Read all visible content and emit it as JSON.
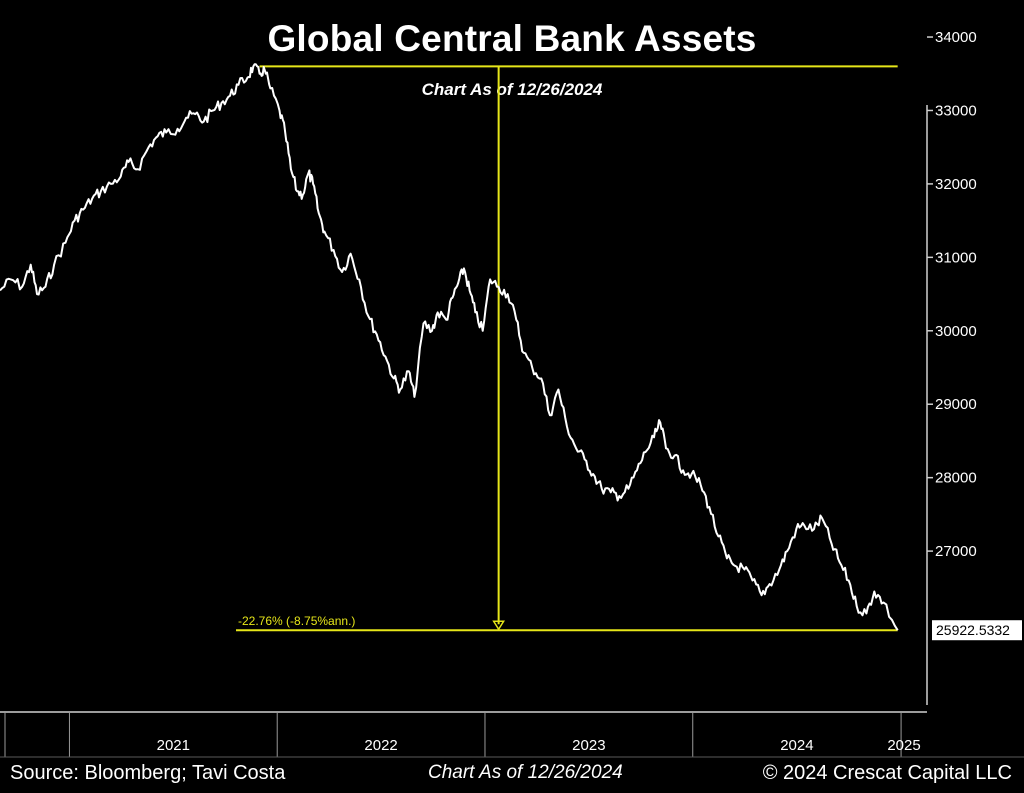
{
  "chart_data": {
    "type": "line",
    "title": "Global Central Bank Assets",
    "subtitle": "Chart As of 12/26/2024",
    "xlabel": "",
    "ylabel": "",
    "x_range": [
      "2020-09-01",
      "2025-06-15"
    ],
    "ylim": [
      24700,
      34300
    ],
    "y_ticks": [
      27000,
      28000,
      29000,
      30000,
      31000,
      32000,
      33000,
      34000
    ],
    "y_tick_labels": [
      "27000",
      "28000",
      "29000",
      "30000",
      "31000",
      "32000",
      "33000",
      "34000"
    ],
    "x_tick_labels": [
      "2021",
      "2022",
      "2023",
      "2024",
      "2025"
    ],
    "x_tick_dates": [
      "2021-01-01",
      "2022-01-01",
      "2023-01-01",
      "2024-01-01",
      "2025-01-01"
    ],
    "grid": false,
    "series": [
      {
        "color": "#ffffff",
        "points": [
          [
            "2020-09-01",
            30550
          ],
          [
            "2020-09-20",
            30700
          ],
          [
            "2020-10-10",
            30600
          ],
          [
            "2020-10-25",
            30900
          ],
          [
            "2020-11-05",
            30500
          ],
          [
            "2020-11-20",
            30600
          ],
          [
            "2020-12-05",
            30900
          ],
          [
            "2020-12-25",
            31200
          ],
          [
            "2021-01-10",
            31500
          ],
          [
            "2021-01-25",
            31650
          ],
          [
            "2021-02-10",
            31800
          ],
          [
            "2021-02-25",
            31900
          ],
          [
            "2021-03-15",
            32000
          ],
          [
            "2021-04-01",
            32100
          ],
          [
            "2021-04-15",
            32300
          ],
          [
            "2021-05-01",
            32200
          ],
          [
            "2021-05-20",
            32500
          ],
          [
            "2021-06-05",
            32650
          ],
          [
            "2021-06-20",
            32700
          ],
          [
            "2021-07-10",
            32750
          ],
          [
            "2021-07-25",
            32900
          ],
          [
            "2021-08-10",
            32950
          ],
          [
            "2021-08-25",
            32850
          ],
          [
            "2021-09-10",
            33000
          ],
          [
            "2021-09-25",
            33100
          ],
          [
            "2021-10-10",
            33200
          ],
          [
            "2021-10-25",
            33350
          ],
          [
            "2021-11-10",
            33450
          ],
          [
            "2021-11-20",
            33600
          ],
          [
            "2021-12-01",
            33500
          ],
          [
            "2021-12-10",
            33550
          ],
          [
            "2021-12-20",
            33300
          ],
          [
            "2022-01-05",
            33000
          ],
          [
            "2022-01-15",
            32700
          ],
          [
            "2022-01-25",
            32200
          ],
          [
            "2022-02-05",
            31900
          ],
          [
            "2022-02-15",
            31850
          ],
          [
            "2022-02-25",
            32150
          ],
          [
            "2022-03-05",
            32000
          ],
          [
            "2022-03-15",
            31600
          ],
          [
            "2022-03-25",
            31350
          ],
          [
            "2022-04-10",
            31100
          ],
          [
            "2022-04-25",
            30800
          ],
          [
            "2022-05-10",
            31050
          ],
          [
            "2022-05-25",
            30700
          ],
          [
            "2022-06-10",
            30200
          ],
          [
            "2022-06-25",
            29950
          ],
          [
            "2022-07-10",
            29650
          ],
          [
            "2022-07-25",
            29350
          ],
          [
            "2022-08-05",
            29200
          ],
          [
            "2022-08-20",
            29450
          ],
          [
            "2022-08-30",
            29100
          ],
          [
            "2022-09-15",
            30100
          ],
          [
            "2022-09-30",
            30000
          ],
          [
            "2022-10-10",
            30250
          ],
          [
            "2022-10-25",
            30150
          ],
          [
            "2022-11-05",
            30450
          ],
          [
            "2022-11-15",
            30650
          ],
          [
            "2022-11-25",
            30850
          ],
          [
            "2022-12-05",
            30550
          ],
          [
            "2022-12-15",
            30250
          ],
          [
            "2022-12-28",
            30000
          ],
          [
            "2023-01-10",
            30700
          ],
          [
            "2023-01-25",
            30600
          ],
          [
            "2023-02-10",
            30500
          ],
          [
            "2023-02-25",
            30150
          ],
          [
            "2023-03-10",
            29700
          ],
          [
            "2023-03-25",
            29500
          ],
          [
            "2023-04-10",
            29350
          ],
          [
            "2023-04-25",
            28850
          ],
          [
            "2023-05-10",
            29200
          ],
          [
            "2023-05-25",
            28700
          ],
          [
            "2023-06-10",
            28400
          ],
          [
            "2023-06-25",
            28250
          ],
          [
            "2023-07-10",
            28050
          ],
          [
            "2023-07-25",
            27850
          ],
          [
            "2023-08-10",
            27800
          ],
          [
            "2023-08-25",
            27750
          ],
          [
            "2023-09-10",
            27850
          ],
          [
            "2023-09-25",
            28100
          ],
          [
            "2023-10-10",
            28350
          ],
          [
            "2023-10-25",
            28550
          ],
          [
            "2023-11-05",
            28750
          ],
          [
            "2023-11-15",
            28400
          ],
          [
            "2023-11-30",
            28300
          ],
          [
            "2023-12-15",
            28100
          ],
          [
            "2023-12-30",
            28050
          ],
          [
            "2024-01-15",
            27900
          ],
          [
            "2024-01-30",
            27600
          ],
          [
            "2024-02-15",
            27200
          ],
          [
            "2024-03-01",
            26900
          ],
          [
            "2024-03-15",
            26800
          ],
          [
            "2024-04-01",
            26750
          ],
          [
            "2024-04-15",
            26600
          ],
          [
            "2024-05-01",
            26400
          ],
          [
            "2024-05-15",
            26550
          ],
          [
            "2024-06-01",
            26750
          ],
          [
            "2024-06-15",
            27000
          ],
          [
            "2024-07-01",
            27300
          ],
          [
            "2024-07-15",
            27350
          ],
          [
            "2024-08-01",
            27300
          ],
          [
            "2024-08-15",
            27450
          ],
          [
            "2024-09-01",
            27100
          ],
          [
            "2024-09-15",
            26850
          ],
          [
            "2024-10-01",
            26600
          ],
          [
            "2024-10-15",
            26250
          ],
          [
            "2024-11-01",
            26150
          ],
          [
            "2024-11-15",
            26450
          ],
          [
            "2024-12-01",
            26300
          ],
          [
            "2024-12-26",
            25922.5332
          ]
        ]
      }
    ],
    "annotations": {
      "peak_value": 33600,
      "peak_line_start": "2021-12-01",
      "drawdown_label": "-22.76% (-8.75%ann.)",
      "last_value_label": "25922.5332",
      "arrow_date": "2023-01-25",
      "line_color": "#e6e619"
    }
  },
  "footer": {
    "source": "Source: Bloomberg; Tavi Costa",
    "date": "Chart As of 12/26/2024",
    "copyright": "© 2024 Crescat Capital LLC"
  }
}
